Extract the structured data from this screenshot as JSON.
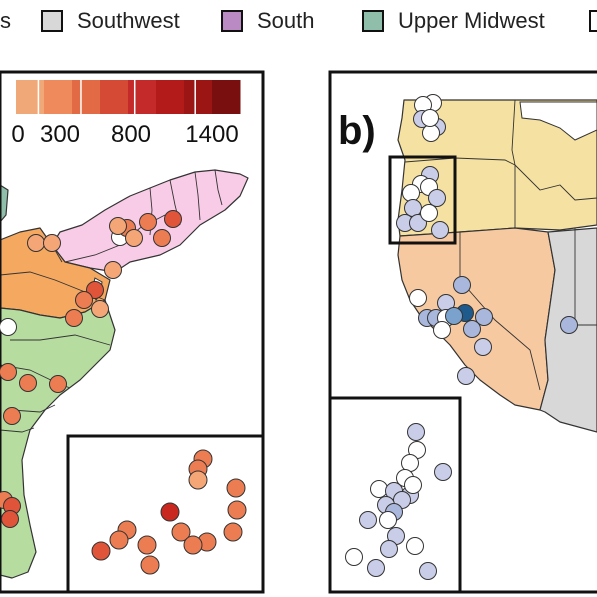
{
  "legend": {
    "partial_label": "s",
    "items": [
      {
        "label": "Southwest",
        "color": "#d8d8d8"
      },
      {
        "label": "South",
        "color": "#b98ac4"
      },
      {
        "label": "Upper Midwest",
        "color": "#8fbfaa"
      },
      {
        "label": "",
        "color": "#ffffff"
      }
    ]
  },
  "scale": {
    "tick_labels": [
      "0",
      "300",
      "800",
      "1400"
    ],
    "colors": [
      "#f1a878",
      "#ee8a5c",
      "#e26a44",
      "#d44a35",
      "#c42a2a",
      "#b31a1a",
      "#9b1515",
      "#7a0f0f"
    ]
  },
  "panel_b": {
    "tag": "b)"
  },
  "region_colors": {
    "northeast": "#f8cce6",
    "appalachia": "#f4a860",
    "southeast": "#b7dca0",
    "northwest": "#f5e1a1",
    "california": "#f7c9a0",
    "southwest": "#d8d8d8",
    "upper_midwest": "#8fbfaa"
  }
}
